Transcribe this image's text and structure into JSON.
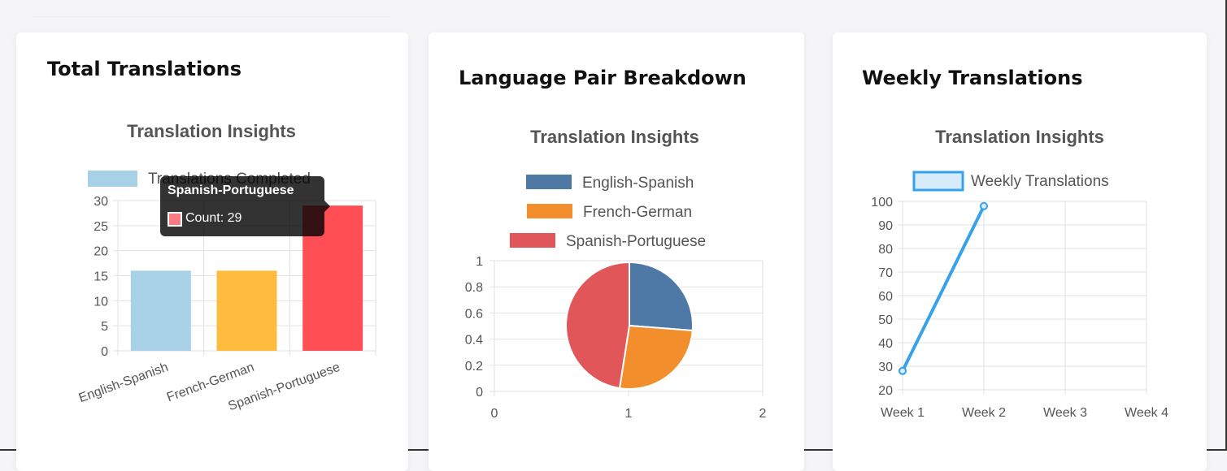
{
  "cards": [
    {
      "title": "Total Translations",
      "chart_data": {
        "type": "bar",
        "title": "Translation Insights",
        "categories": [
          "English-Spanish",
          "French-German",
          "Spanish-Portuguese"
        ],
        "series": [
          {
            "name": "Translations Completed",
            "values": [
              16,
              16,
              29
            ]
          }
        ],
        "colors": [
          "#a8d1e7",
          "#ffbb3d",
          "#ff4f54"
        ],
        "ylim": [
          0,
          30
        ],
        "yticks": [
          0,
          5,
          10,
          15,
          20,
          25,
          30
        ],
        "grid": true,
        "legend": "top",
        "tooltip": {
          "title": "Spanish-Portuguese",
          "label": "Count: 29"
        }
      }
    },
    {
      "title": "Language Pair Breakdown",
      "chart_data": {
        "type": "pie",
        "title": "Translation Insights",
        "labels": [
          "English-Spanish",
          "French-German",
          "Spanish-Portuguese"
        ],
        "values": [
          16,
          16,
          29
        ],
        "colors": [
          "#4e79a7",
          "#f28e2c",
          "#e15759"
        ],
        "xticks": [
          "0",
          "1",
          "2"
        ],
        "yticks": [
          "0",
          "0.2",
          "0.4",
          "0.6",
          "0.8",
          "1"
        ],
        "legend": "top"
      }
    },
    {
      "title": "Weekly Translations",
      "chart_data": {
        "type": "line",
        "title": "Translation Insights",
        "categories": [
          "Week 1",
          "Week 2",
          "Week 3",
          "Week 4"
        ],
        "series": [
          {
            "name": "Weekly Translations",
            "values": [
              28,
              98,
              null,
              null
            ]
          }
        ],
        "color": "#36a2eb",
        "ylim": [
          20,
          100
        ],
        "yticks": [
          20,
          30,
          40,
          50,
          60,
          70,
          80,
          90,
          100
        ],
        "grid": true,
        "legend": "top"
      }
    }
  ]
}
